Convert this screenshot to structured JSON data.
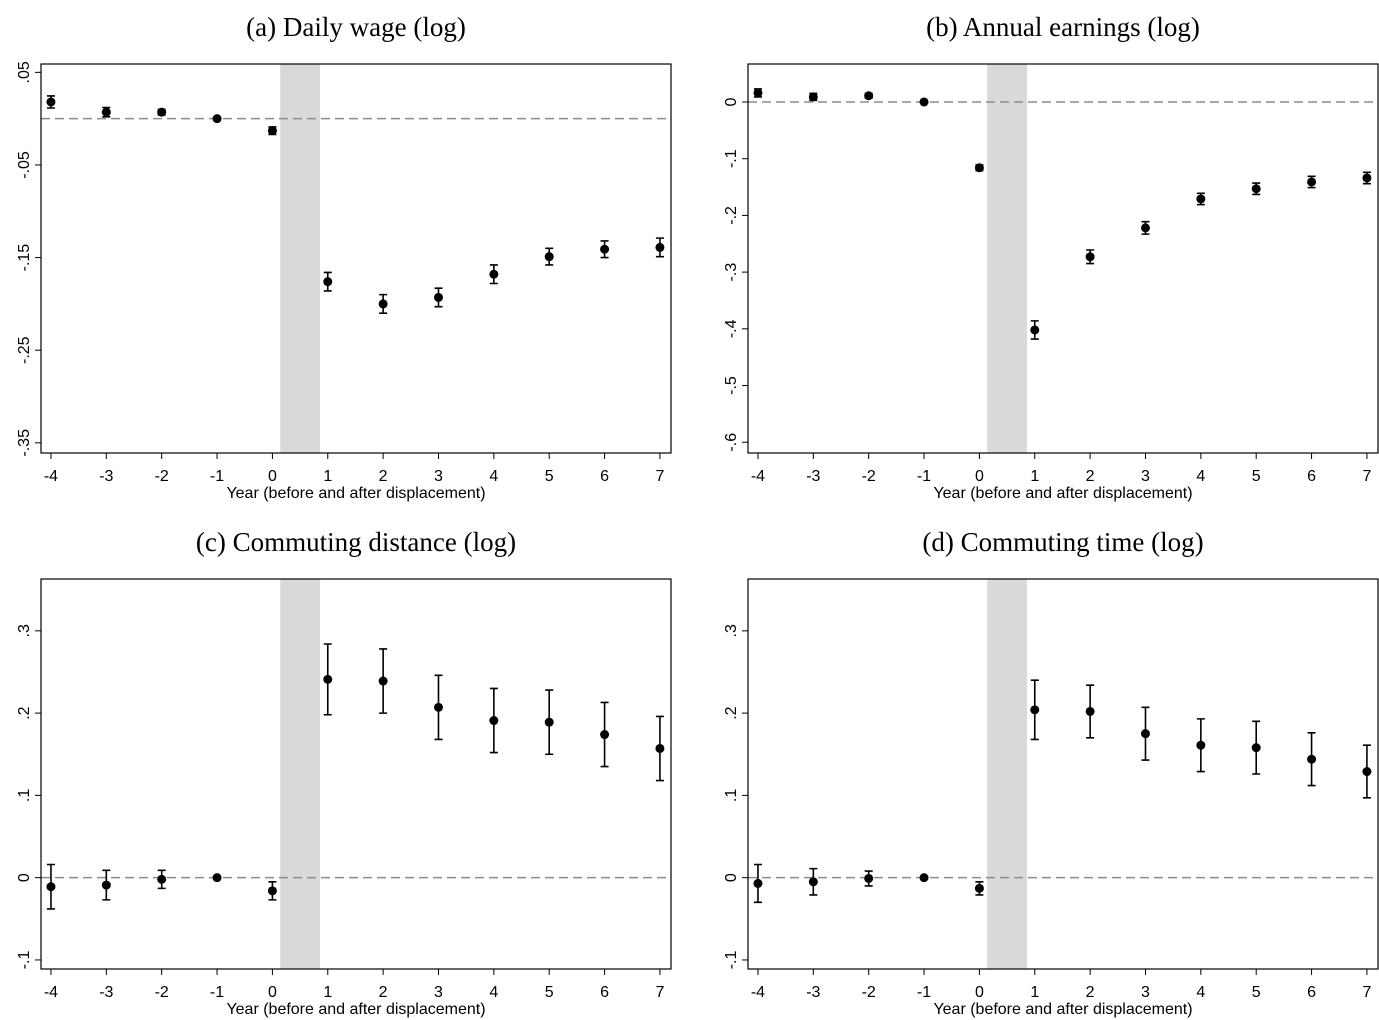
{
  "chart_data": [
    {
      "type": "errorbar",
      "title": "(a) Daily wage (log)",
      "x_label": "Year (before and after displacement)",
      "x": [
        -4,
        -3,
        -2,
        -1,
        0,
        1,
        2,
        3,
        4,
        5,
        6,
        7
      ],
      "values": [
        0.018,
        0.007,
        0.007,
        0,
        -0.013,
        -0.176,
        -0.2,
        -0.193,
        -0.168,
        -0.149,
        -0.141,
        -0.139
      ],
      "errors": [
        0.0065,
        0.005,
        0.003,
        0,
        0.004,
        0.01,
        0.01,
        0.01,
        0.01,
        0.009,
        0.009,
        0.01
      ],
      "xlim": [
        -4.18,
        7.2
      ],
      "xticks": [
        -4,
        -3,
        -2,
        -1,
        0,
        1,
        2,
        3,
        4,
        5,
        6,
        7
      ],
      "ylim": [
        -0.361,
        0.059
      ],
      "yticks": [
        {
          "value": 0.05,
          "label": ".05"
        },
        {
          "value": -0.05,
          "label": "-.05"
        },
        {
          "value": -0.15,
          "label": "-.15"
        },
        {
          "value": -0.25,
          "label": "-.25"
        },
        {
          "value": -0.35,
          "label": "-.35"
        }
      ],
      "reference_y": 0,
      "shaded_x": [
        0.14,
        0.86
      ],
      "color": "#000000",
      "shade_color": "#d9d9d9"
    },
    {
      "type": "errorbar",
      "title": "(b) Annual earnings (log)",
      "x_label": "Year (before and after displacement)",
      "x": [
        -4,
        -3,
        -2,
        -1,
        0,
        1,
        2,
        3,
        4,
        5,
        6,
        7
      ],
      "values": [
        0.016,
        0.009,
        0.011,
        0,
        -0.116,
        -0.402,
        -0.273,
        -0.222,
        -0.171,
        -0.153,
        -0.141,
        -0.134
      ],
      "errors": [
        0.007,
        0.006,
        0.004,
        0,
        0.005,
        0.016,
        0.012,
        0.011,
        0.01,
        0.01,
        0.01,
        0.01
      ],
      "xlim": [
        -4.18,
        7.2
      ],
      "xticks": [
        -4,
        -3,
        -2,
        -1,
        0,
        1,
        2,
        3,
        4,
        5,
        6,
        7
      ],
      "ylim": [
        -0.619,
        0.067
      ],
      "yticks": [
        0,
        {
          "value": -0.1,
          "label": "-.1"
        },
        {
          "value": -0.2,
          "label": "-.2"
        },
        {
          "value": -0.3,
          "label": "-.3"
        },
        {
          "value": -0.4,
          "label": "-.4"
        },
        {
          "value": -0.5,
          "label": "-.5"
        },
        {
          "value": -0.6,
          "label": "-.6"
        }
      ],
      "reference_y": 0,
      "shaded_x": [
        0.14,
        0.86
      ],
      "color": "#000000",
      "shade_color": "#d9d9d9"
    },
    {
      "type": "errorbar",
      "title": "(c) Commuting distance (log)",
      "x_label": "Year (before and after displacement)",
      "x": [
        -4,
        -3,
        -2,
        -1,
        0,
        1,
        2,
        3,
        4,
        5,
        6,
        7
      ],
      "values": [
        -0.011,
        -0.009,
        -0.002,
        0,
        -0.016,
        0.241,
        0.239,
        0.207,
        0.191,
        0.189,
        0.174,
        0.157
      ],
      "errors": [
        0.027,
        0.018,
        0.011,
        0,
        0.011,
        0.043,
        0.039,
        0.039,
        0.039,
        0.039,
        0.039,
        0.039
      ],
      "xlim": [
        -4.18,
        7.2
      ],
      "xticks": [
        -4,
        -3,
        -2,
        -1,
        0,
        1,
        2,
        3,
        4,
        5,
        6,
        7
      ],
      "ylim": [
        -0.111,
        0.363
      ],
      "yticks": [
        {
          "value": 0.3,
          "label": ".3"
        },
        {
          "value": 0.2,
          "label": ".2"
        },
        {
          "value": 0.1,
          "label": ".1"
        },
        0,
        {
          "value": -0.1,
          "label": "-.1"
        }
      ],
      "reference_y": 0,
      "shaded_x": [
        0.14,
        0.86
      ],
      "color": "#000000",
      "shade_color": "#d9d9d9"
    },
    {
      "type": "errorbar",
      "title": "(d) Commuting time (log)",
      "x_label": "Year (before and after displacement)",
      "x": [
        -4,
        -3,
        -2,
        -1,
        0,
        1,
        2,
        3,
        4,
        5,
        6,
        7
      ],
      "values": [
        -0.007,
        -0.005,
        -0.001,
        0,
        -0.013,
        0.204,
        0.202,
        0.175,
        0.161,
        0.158,
        0.144,
        0.129
      ],
      "errors": [
        0.023,
        0.016,
        0.009,
        0,
        0.008,
        0.036,
        0.032,
        0.032,
        0.032,
        0.032,
        0.032,
        0.032
      ],
      "xlim": [
        -4.18,
        7.2
      ],
      "xticks": [
        -4,
        -3,
        -2,
        -1,
        0,
        1,
        2,
        3,
        4,
        5,
        6,
        7
      ],
      "ylim": [
        -0.111,
        0.363
      ],
      "yticks": [
        {
          "value": 0.3,
          "label": ".3"
        },
        {
          "value": 0.2,
          "label": ".2"
        },
        {
          "value": 0.1,
          "label": ".1"
        },
        0,
        {
          "value": -0.1,
          "label": "-.1"
        }
      ],
      "reference_y": 0,
      "shaded_x": [
        0.14,
        0.86
      ],
      "color": "#000000",
      "shade_color": "#d9d9d9"
    }
  ]
}
